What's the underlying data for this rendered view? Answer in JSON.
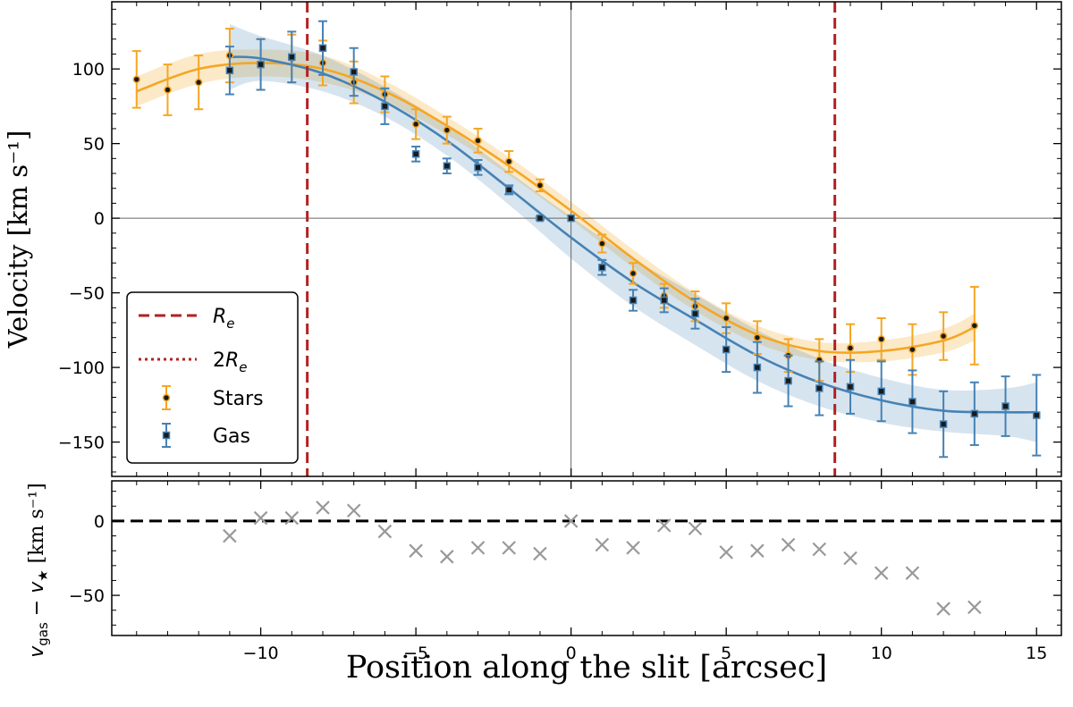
{
  "chart_data": [
    {
      "type": "scatter",
      "panel": "top",
      "xlabel": "Position along the slit [arcsec]",
      "ylabel": "Velocity [km s⁻¹]",
      "xlim": [
        -14.8,
        15.8
      ],
      "ylim": [
        -173,
        145
      ],
      "xticks": [
        -10,
        -5,
        0,
        5,
        10,
        15
      ],
      "xtick_labels": [
        "−10",
        "−5",
        "0",
        "5",
        "10",
        "15"
      ],
      "yticks": [
        -150,
        -100,
        -50,
        0,
        50,
        100
      ],
      "ytick_labels": [
        "−150",
        "−100",
        "−50",
        "0",
        "50",
        "100"
      ],
      "reference_lines": {
        "horizontal": 0,
        "vertical": 0
      },
      "vlines_dashed": [
        -8.5,
        8.5
      ],
      "grid": false,
      "legend_placement": "lower-left",
      "legend": [
        {
          "label_base": "R",
          "label_sub": "e",
          "style": "dashed",
          "color": "#b22222"
        },
        {
          "label_prefix": "2",
          "label_base": "R",
          "label_sub": "e",
          "style": "dotted",
          "color": "#b22222"
        },
        {
          "label": "Stars",
          "marker": "circle",
          "color": "#f5a623"
        },
        {
          "label": "Gas",
          "marker": "square",
          "color": "#4682b4"
        }
      ],
      "series": [
        {
          "name": "Stars",
          "color": "#f5a623",
          "x": [
            -14,
            -13,
            -12,
            -11,
            -10,
            -9,
            -8,
            -7,
            -6,
            -5,
            -4,
            -3,
            -2,
            -1,
            0,
            1,
            2,
            3,
            4,
            5,
            6,
            7,
            8,
            9,
            10,
            11,
            12,
            13
          ],
          "y": [
            93,
            86,
            91,
            109,
            103,
            107,
            104,
            91,
            83,
            63,
            59,
            52,
            38,
            22,
            0,
            -17,
            -37,
            -52,
            -59,
            -67,
            -80,
            -92,
            -95,
            -87,
            -81,
            -88,
            -79,
            -72
          ],
          "err": [
            19,
            17,
            18,
            18,
            17,
            16,
            15,
            14,
            12,
            10,
            9,
            8,
            7,
            4,
            0,
            6,
            7,
            8,
            10,
            10,
            11,
            11,
            14,
            16,
            14,
            17,
            16,
            26
          ],
          "fit_x": [
            -14,
            -12,
            -10,
            -8,
            -6,
            -4,
            -2,
            0,
            2,
            4,
            6,
            8,
            10,
            12,
            13
          ],
          "fit_y": [
            85,
            100,
            104,
            100,
            85,
            62,
            35,
            5,
            -27,
            -56,
            -78,
            -89,
            -89,
            -82,
            -73
          ],
          "band": [
            10,
            10,
            9,
            9,
            7,
            6,
            6,
            6,
            6,
            6,
            6,
            6,
            7,
            8,
            9
          ]
        },
        {
          "name": "Gas",
          "color": "#4682b4",
          "x": [
            -11,
            -10,
            -9,
            -8,
            -7,
            -6,
            -5,
            -4,
            -3,
            -2,
            -1,
            0,
            1,
            2,
            3,
            4,
            5,
            6,
            7,
            8,
            9,
            10,
            11,
            12,
            13,
            14,
            15
          ],
          "y": [
            99,
            103,
            108,
            114,
            98,
            75,
            43,
            35,
            34,
            19,
            0,
            0,
            -33,
            -55,
            -55,
            -64,
            -88,
            -100,
            -109,
            -114,
            -113,
            -116,
            -123,
            -138,
            -131,
            -126,
            -132
          ],
          "err": [
            16,
            17,
            17,
            18,
            16,
            12,
            5,
            5,
            5,
            3,
            1,
            0,
            5,
            7,
            8,
            10,
            15,
            17,
            17,
            18,
            18,
            20,
            21,
            22,
            21,
            20,
            27
          ],
          "fit_x": [
            -11,
            -10,
            -8,
            -6,
            -4,
            -2,
            0,
            2,
            4,
            6,
            8,
            10,
            12,
            14,
            15
          ],
          "fit_y": [
            108,
            107,
            97,
            78,
            52,
            20,
            -13,
            -43,
            -68,
            -92,
            -110,
            -122,
            -129,
            -130,
            -130
          ],
          "band": [
            22,
            15,
            12,
            10,
            10,
            11,
            14,
            16,
            17,
            17,
            16,
            15,
            14,
            16,
            20
          ]
        }
      ]
    },
    {
      "type": "scatter",
      "panel": "bottom",
      "ylabel_main": "v",
      "ylabel_main_sub": "gas",
      "ylabel_minus": " − v",
      "ylabel_star_sub": "★",
      "ylabel_units": " [km s⁻¹]",
      "xlim": [
        -14.8,
        15.8
      ],
      "ylim": [
        -77,
        27
      ],
      "yticks": [
        -50,
        0
      ],
      "ytick_labels": [
        "−50",
        "0"
      ],
      "hline_dashed": 0,
      "marker": "x",
      "color": "#999999",
      "x": [
        -11,
        -10,
        -9,
        -8,
        -7,
        -6,
        -5,
        -4,
        -3,
        -2,
        -1,
        0,
        1,
        2,
        3,
        4,
        5,
        6,
        7,
        8,
        9,
        10,
        11,
        12,
        13
      ],
      "y": [
        -10,
        2,
        2,
        9,
        7,
        -7,
        -20,
        -24,
        -18,
        -18,
        -22,
        0,
        -16,
        -18,
        -3,
        -5,
        -21,
        -20,
        -16,
        -19,
        -25,
        -35,
        -35,
        -59,
        -58
      ]
    }
  ]
}
